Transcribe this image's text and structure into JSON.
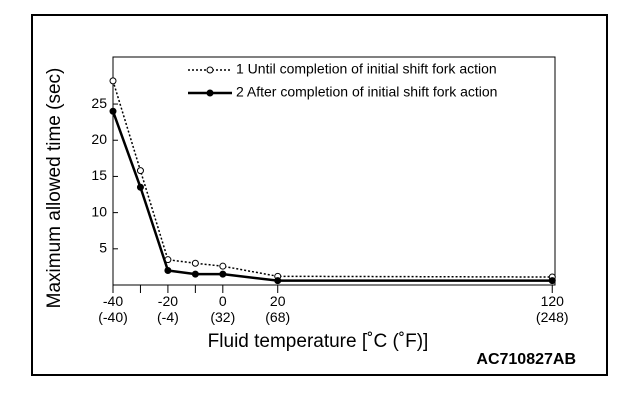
{
  "chart_data": {
    "type": "line",
    "xlabel": "Fluid temperature [˚C (˚F)]",
    "ylabel": "Maximum allowed time (sec)",
    "annotation": "AC710827AB",
    "x": [
      -40,
      -30,
      -20,
      -10,
      0,
      20,
      120
    ],
    "series": [
      {
        "name": "1 Until completion of initial shift fork action",
        "color": "#000000",
        "style": "dotted",
        "marker": "open-circle",
        "values": [
          28.2,
          15.8,
          3.5,
          3.0,
          2.6,
          1.2,
          1.1
        ]
      },
      {
        "name": "2 After completion of initial shift fork action",
        "color": "#000000",
        "style": "solid",
        "marker": "filled-circle",
        "values": [
          24,
          13.5,
          2.0,
          1.5,
          1.5,
          0.6,
          0.6
        ]
      }
    ],
    "xlim": [
      -40,
      121
    ],
    "xticks": [
      {
        "value": -40,
        "label": "-40\n(-40)"
      },
      {
        "value": -20,
        "label": "-20\n(-4)"
      },
      {
        "value": 0,
        "label": "0\n(32)"
      },
      {
        "value": 20,
        "label": "20\n(68)"
      },
      {
        "value": 120,
        "label": "120\n(248)"
      }
    ],
    "xminor": [
      -30,
      -10
    ],
    "ylim": [
      0,
      31.5
    ],
    "yticks": [
      5,
      10,
      15,
      20,
      25
    ],
    "grid": false,
    "legend": "top"
  }
}
